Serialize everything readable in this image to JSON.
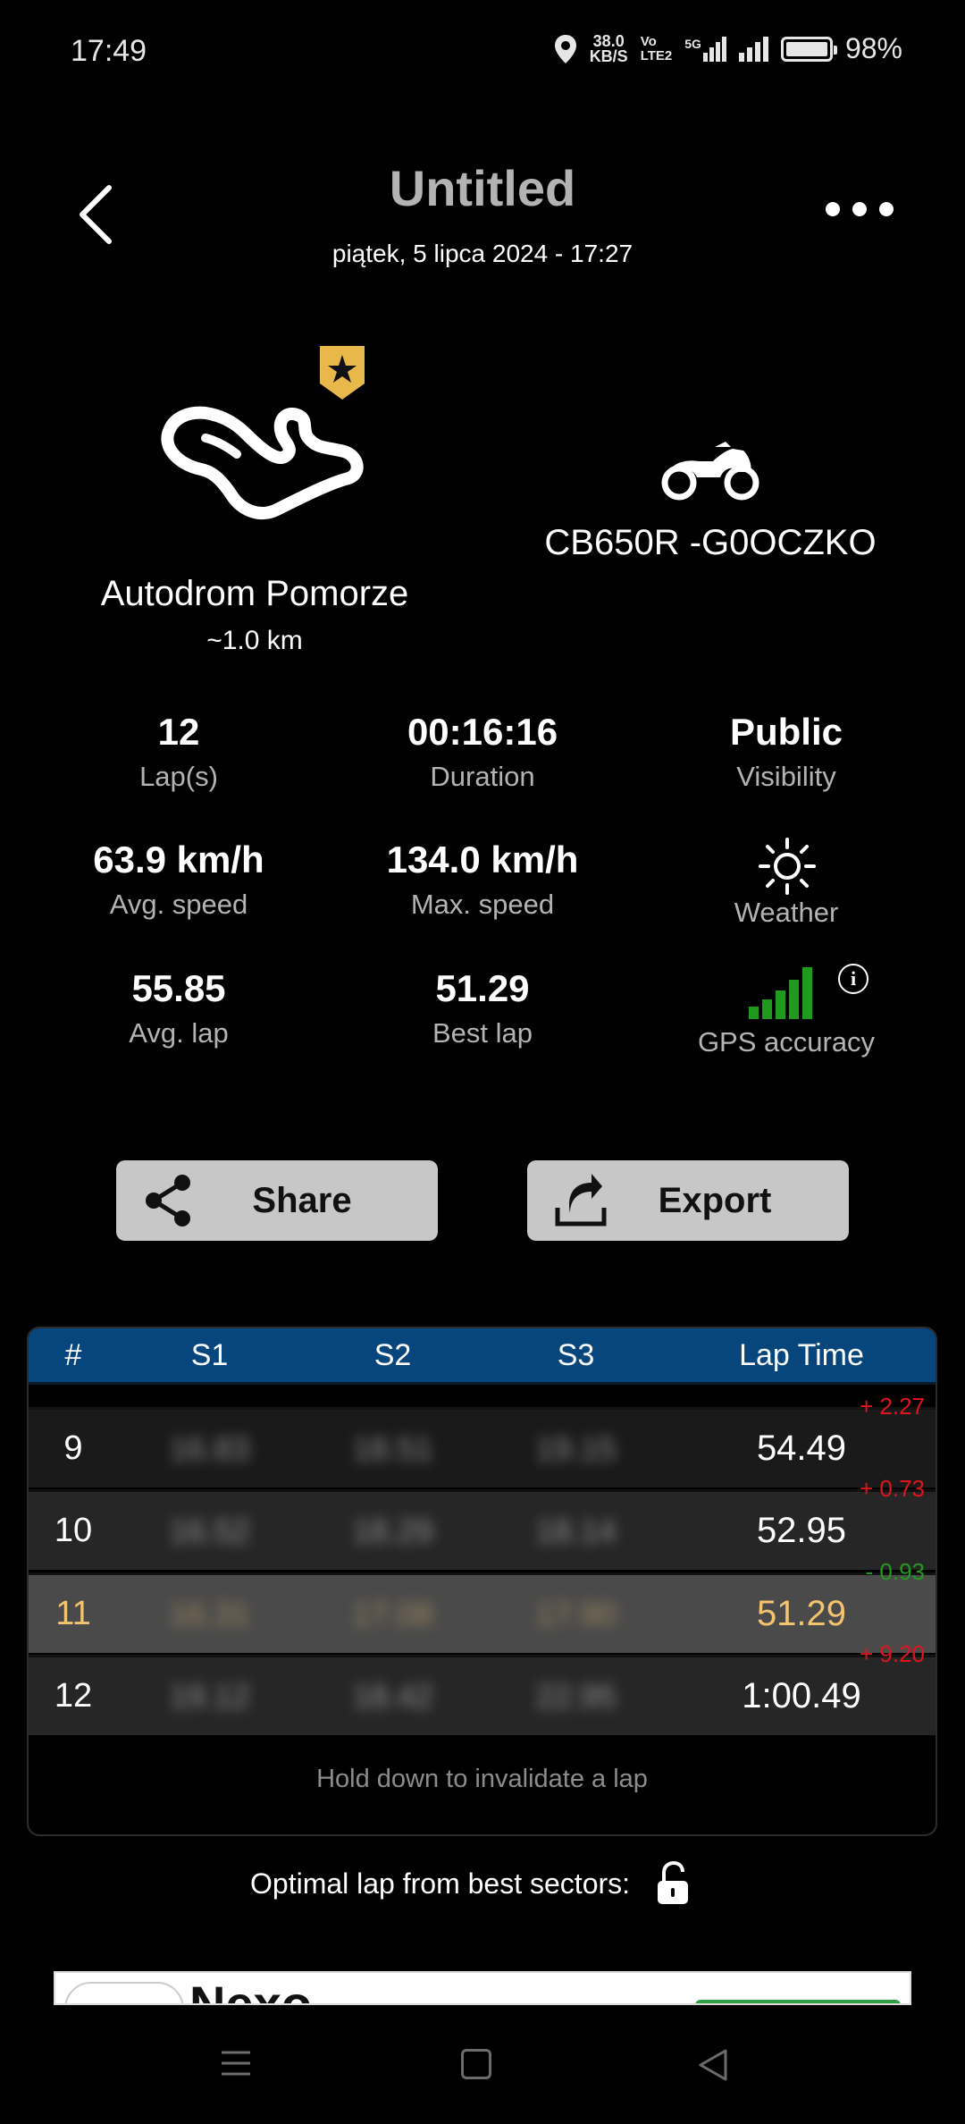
{
  "status_bar": {
    "time": "17:49",
    "net_speed_value": "38.0",
    "net_speed_unit": "KB/S",
    "volte_top": "Vo",
    "volte_bottom": "LTE2",
    "network": "5G",
    "battery": "98%",
    "battery_level": 0.98
  },
  "header": {
    "title": "Untitled",
    "subtitle": "piątek, 5 lipca 2024  -  17:27"
  },
  "track": {
    "name": "Autodrom Pomorze",
    "length": "~1.0 km"
  },
  "bike": {
    "name": "CB650R -G0OCZKO"
  },
  "stats": {
    "laps": {
      "value": "12",
      "label": "Lap(s)"
    },
    "duration": {
      "value": "00:16:16",
      "label": "Duration"
    },
    "visibility": {
      "value": "Public",
      "label": "Visibility"
    },
    "avg_speed": {
      "value": "63.9 km/h",
      "label": "Avg. speed"
    },
    "max_speed": {
      "value": "134.0 km/h",
      "label": "Max. speed"
    },
    "weather": {
      "label": "Weather",
      "icon": "sun-icon"
    },
    "avg_lap": {
      "value": "55.85",
      "label": "Avg. lap"
    },
    "best_lap": {
      "value": "51.29",
      "label": "Best lap"
    },
    "gps": {
      "label": "GPS accuracy",
      "level": 5
    }
  },
  "buttons": {
    "share": "Share",
    "export": "Export"
  },
  "table": {
    "headers": [
      "#",
      "S1",
      "S2",
      "S3",
      "Lap Time"
    ],
    "rows": [
      {
        "num": "9",
        "s1": "16.83",
        "s2": "18.51",
        "s3": "19.15",
        "lap": "54.49",
        "delta": "+ 2.27"
      },
      {
        "num": "10",
        "s1": "16.52",
        "s2": "18.29",
        "s3": "18.14",
        "lap": "52.95",
        "delta": "+ 0.73"
      },
      {
        "num": "11",
        "s1": "16.31",
        "s2": "17.08",
        "s3": "17.90",
        "lap": "51.29",
        "delta": "- 0.93"
      },
      {
        "num": "12",
        "s1": "19.12",
        "s2": "18.42",
        "s3": "22.95",
        "lap": "1:00.49",
        "delta": "+ 9.20"
      }
    ],
    "hint": "Hold down to invalidate a lap"
  },
  "optimal": {
    "label": "Optimal lap from best sectors:"
  },
  "ad": {
    "title": "Nexo"
  },
  "colors": {
    "header_blue": "#07457d",
    "best_lap": "#f2c46e",
    "delta_red": "#e0141e",
    "delta_green": "#1f9a1f",
    "badge_gold": "#e8b84a"
  }
}
